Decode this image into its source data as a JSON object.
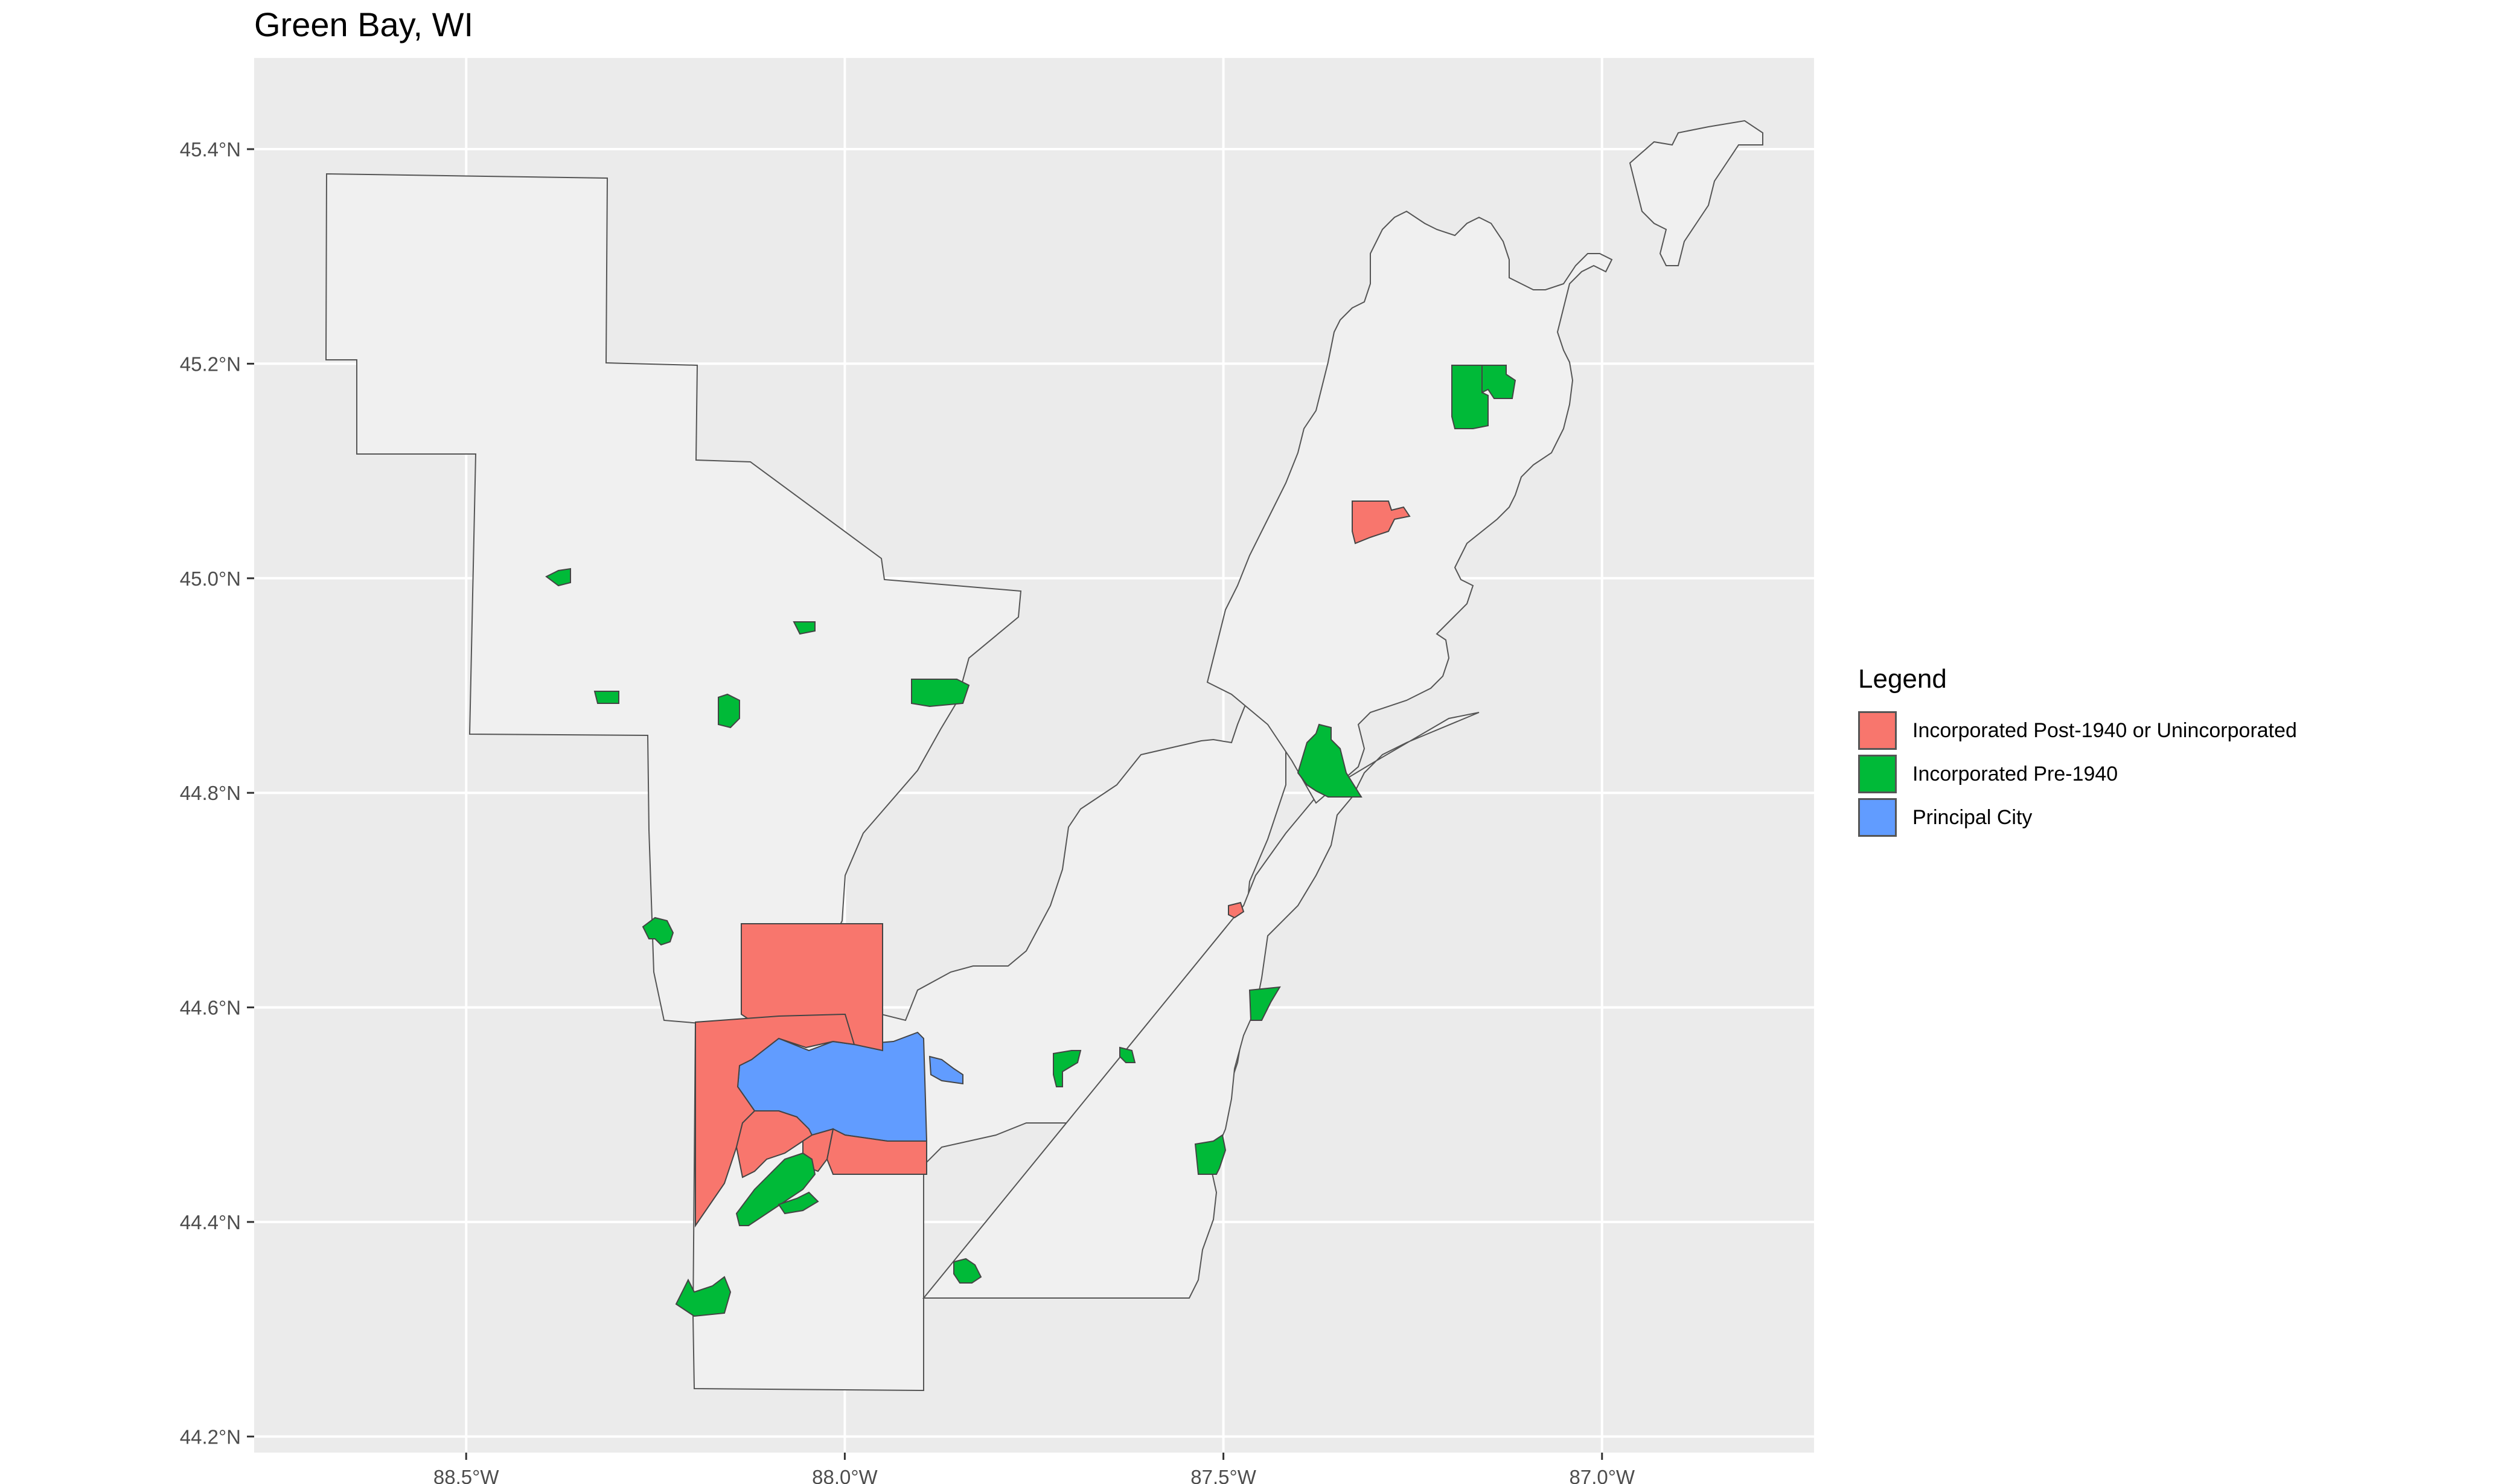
{
  "title": "Green Bay, WI",
  "axes": {
    "x_ticks": [
      "88.5°W",
      "88.0°W",
      "87.5°W",
      "87.0°W"
    ],
    "y_ticks": [
      "45.4°N",
      "45.2°N",
      "45.0°N",
      "44.8°N",
      "44.6°N",
      "44.4°N",
      "44.2°N"
    ],
    "x_range": [
      -88.78,
      -86.72
    ],
    "y_range": [
      44.185,
      45.485
    ]
  },
  "legend": {
    "title": "Legend",
    "items": [
      {
        "label": "Incorporated Post-1940 or Unincorporated",
        "color": "#F8766D"
      },
      {
        "label": "Incorporated Pre-1940",
        "color": "#00BA38"
      },
      {
        "label": "Principal City",
        "color": "#619CFF"
      }
    ]
  },
  "colors": {
    "panel_bg": "#EBEBEB",
    "county_fill": "#F0F0F0",
    "grid": "#FFFFFF",
    "border": "#555555"
  }
}
